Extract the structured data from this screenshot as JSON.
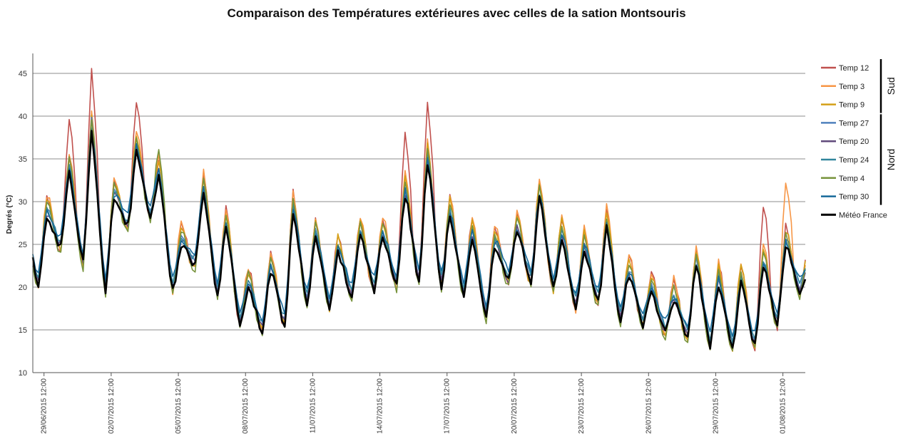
{
  "chart_data": {
    "type": "line",
    "title": "Comparaison des Températures extérieures avec celles de la sation Montsouris",
    "ylabel": "Degrés (°C)",
    "xlabel": "",
    "ylim": [
      10,
      47
    ],
    "yticks": [
      10,
      15,
      20,
      25,
      30,
      35,
      40,
      45
    ],
    "grid": true,
    "legend_position": "right",
    "x_ticks": [
      "29/06/2015 12:00",
      "02/07/2015 12:00",
      "05/07/2015 12:00",
      "08/07/2015 12:00",
      "11/07/2015 12:00",
      "14/07/2015 12:00",
      "17/07/2015 12:00",
      "20/07/2015 12:00",
      "23/07/2015 12:00",
      "26/07/2015 12:00",
      "29/07/2015 12:00",
      "01/08/2015 12:00"
    ],
    "x_range_days": [
      "29/06/2015 00:00",
      "02/08/2015 12:00"
    ],
    "x_step_hours": 3,
    "reference": {
      "name": "Météo France",
      "color": "#000000",
      "daily_min_max": [
        {
          "date": "29/06/2015",
          "min": 20.0,
          "max": 28.5
        },
        {
          "date": "30/06/2015",
          "min": 24.5,
          "max": 33.5
        },
        {
          "date": "01/07/2015",
          "min": 22.5,
          "max": 38.2
        },
        {
          "date": "02/07/2015",
          "min": 19.5,
          "max": 30.5
        },
        {
          "date": "03/07/2015",
          "min": 27.0,
          "max": 36.0
        },
        {
          "date": "04/07/2015",
          "min": 28.0,
          "max": 33.0
        },
        {
          "date": "05/07/2015",
          "min": 19.5,
          "max": 25.0
        },
        {
          "date": "06/07/2015",
          "min": 22.5,
          "max": 31.0
        },
        {
          "date": "07/07/2015",
          "min": 19.0,
          "max": 27.0
        },
        {
          "date": "08/07/2015",
          "min": 15.8,
          "max": 20.0
        },
        {
          "date": "09/07/2015",
          "min": 14.8,
          "max": 22.0
        },
        {
          "date": "10/07/2015",
          "min": 15.5,
          "max": 29.0
        },
        {
          "date": "11/07/2015",
          "min": 18.0,
          "max": 26.0
        },
        {
          "date": "12/07/2015",
          "min": 17.5,
          "max": 24.0
        },
        {
          "date": "13/07/2015",
          "min": 19.0,
          "max": 26.0
        },
        {
          "date": "14/07/2015",
          "min": 19.5,
          "max": 26.0
        },
        {
          "date": "15/07/2015",
          "min": 20.0,
          "max": 31.0
        },
        {
          "date": "16/07/2015",
          "min": 20.5,
          "max": 35.0
        },
        {
          "date": "17/07/2015",
          "min": 20.0,
          "max": 28.5
        },
        {
          "date": "18/07/2015",
          "min": 19.0,
          "max": 26.0
        },
        {
          "date": "19/07/2015",
          "min": 16.5,
          "max": 25.0
        },
        {
          "date": "20/07/2015",
          "min": 20.5,
          "max": 26.5
        },
        {
          "date": "21/07/2015",
          "min": 20.5,
          "max": 30.5
        },
        {
          "date": "22/07/2015",
          "min": 19.5,
          "max": 26.0
        },
        {
          "date": "23/07/2015",
          "min": 17.5,
          "max": 24.5
        },
        {
          "date": "24/07/2015",
          "min": 18.0,
          "max": 27.0
        },
        {
          "date": "25/07/2015",
          "min": 16.0,
          "max": 21.5
        },
        {
          "date": "26/07/2015",
          "min": 15.5,
          "max": 19.5
        },
        {
          "date": "27/07/2015",
          "min": 14.5,
          "max": 18.5
        },
        {
          "date": "28/07/2015",
          "min": 14.0,
          "max": 22.5
        },
        {
          "date": "29/07/2015",
          "min": 13.0,
          "max": 20.5
        },
        {
          "date": "30/07/2015",
          "min": 12.8,
          "max": 20.5
        },
        {
          "date": "31/07/2015",
          "min": 13.0,
          "max": 22.5
        },
        {
          "date": "01/08/2015",
          "min": 15.5,
          "max": 25.0
        },
        {
          "date": "02/08/2015",
          "min": 19.5,
          "max": 22.0
        }
      ]
    },
    "series": [
      {
        "name": "Temp 12",
        "color": "#c0504d",
        "peak_offset": 2.4,
        "trough_offset": -0.4,
        "peak_extra": {
          "01/07/2015": 5.0,
          "03/07/2015": 3.5,
          "16/07/2015": 4.5,
          "15/07/2015": 5.0,
          "31/07/2015": 5.0,
          "30/06/2015": 4.0
        }
      },
      {
        "name": "Temp 3",
        "color": "#f79646",
        "peak_offset": 2.6,
        "trough_offset": -0.3,
        "peak_extra": {
          "01/08/2015": 4.5
        }
      },
      {
        "name": "Temp 9",
        "color": "#d4a017",
        "peak_offset": 2.0,
        "trough_offset": -0.2,
        "peak_extra": {}
      },
      {
        "name": "Temp 27",
        "color": "#4f81bd",
        "peak_offset": 0.8,
        "trough_offset": 0.5,
        "peak_extra": {
          "01/07/2015": 1.5
        }
      },
      {
        "name": "Temp 20",
        "color": "#604a7b",
        "peak_offset": 0.4,
        "trough_offset": 0.3,
        "peak_extra": {}
      },
      {
        "name": "Temp 24",
        "color": "#31859c",
        "peak_offset": 0.6,
        "trough_offset": 0.9,
        "peak_extra": {}
      },
      {
        "name": "Temp 4",
        "color": "#77933c",
        "peak_offset": 1.6,
        "trough_offset": -0.6,
        "peak_extra": {
          "04/07/2015": 2.0
        }
      },
      {
        "name": "Temp 30",
        "color": "#17699a",
        "peak_offset": 0.5,
        "trough_offset": 1.4,
        "peak_extra": {}
      }
    ],
    "legend": {
      "items": [
        "Temp 12",
        "Temp 3",
        "Temp 9",
        "Temp 27",
        "Temp 20",
        "Temp 24",
        "Temp 4",
        "Temp 30",
        "Météo France"
      ],
      "groups": [
        {
          "label": "Sud",
          "members": [
            "Temp 12",
            "Temp 3",
            "Temp 9"
          ]
        },
        {
          "label": "Nord",
          "members": [
            "Temp 27",
            "Temp 20",
            "Temp 24",
            "Temp 4",
            "Temp 30"
          ]
        }
      ]
    }
  }
}
